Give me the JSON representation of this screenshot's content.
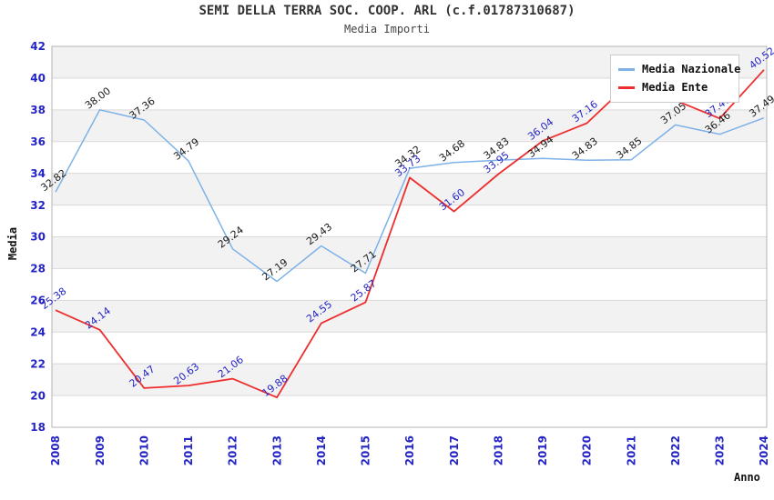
{
  "header": {
    "title": "SEMI DELLA TERRA SOC. COOP. ARL (c.f.01787310687)",
    "subtitle": "Media Importi"
  },
  "axes": {
    "x_label": "Anno",
    "y_label": "Media"
  },
  "chart_data": {
    "type": "line",
    "x": [
      "2008",
      "2009",
      "2010",
      "2011",
      "2012",
      "2013",
      "2014",
      "2015",
      "2016",
      "2017",
      "2018",
      "2019",
      "2020",
      "2021",
      "2022",
      "2023",
      "2024"
    ],
    "xlabel": "Anno",
    "ylabel": "Media",
    "ylim": [
      18,
      42
    ],
    "ytick_step": 2,
    "grid": true,
    "legend_position": "top-right",
    "series": [
      {
        "name": "Media Nazionale",
        "color": "#7db1e8",
        "label_color": "#1a1a1a",
        "values": [
          32.82,
          38.0,
          37.36,
          34.79,
          29.24,
          27.19,
          29.43,
          27.71,
          34.32,
          34.68,
          34.83,
          34.94,
          34.83,
          34.85,
          37.05,
          36.46,
          37.49
        ]
      },
      {
        "name": "Media Ente",
        "color": "#ee2e2e",
        "label_color": "#2424c4",
        "values": [
          25.38,
          24.14,
          20.47,
          20.63,
          21.06,
          19.88,
          24.55,
          25.87,
          33.73,
          31.6,
          33.95,
          36.04,
          37.16,
          39.8,
          38.6,
          37.46,
          40.52
        ],
        "hidden_label_indexes": [
          13,
          14
        ]
      }
    ]
  },
  "colors": {
    "tick_label": "#2424c4",
    "grid": "#d9d9d9",
    "band": "#f2f2f2",
    "plot_border": "#b3b3b3",
    "background": "#ffffff"
  }
}
